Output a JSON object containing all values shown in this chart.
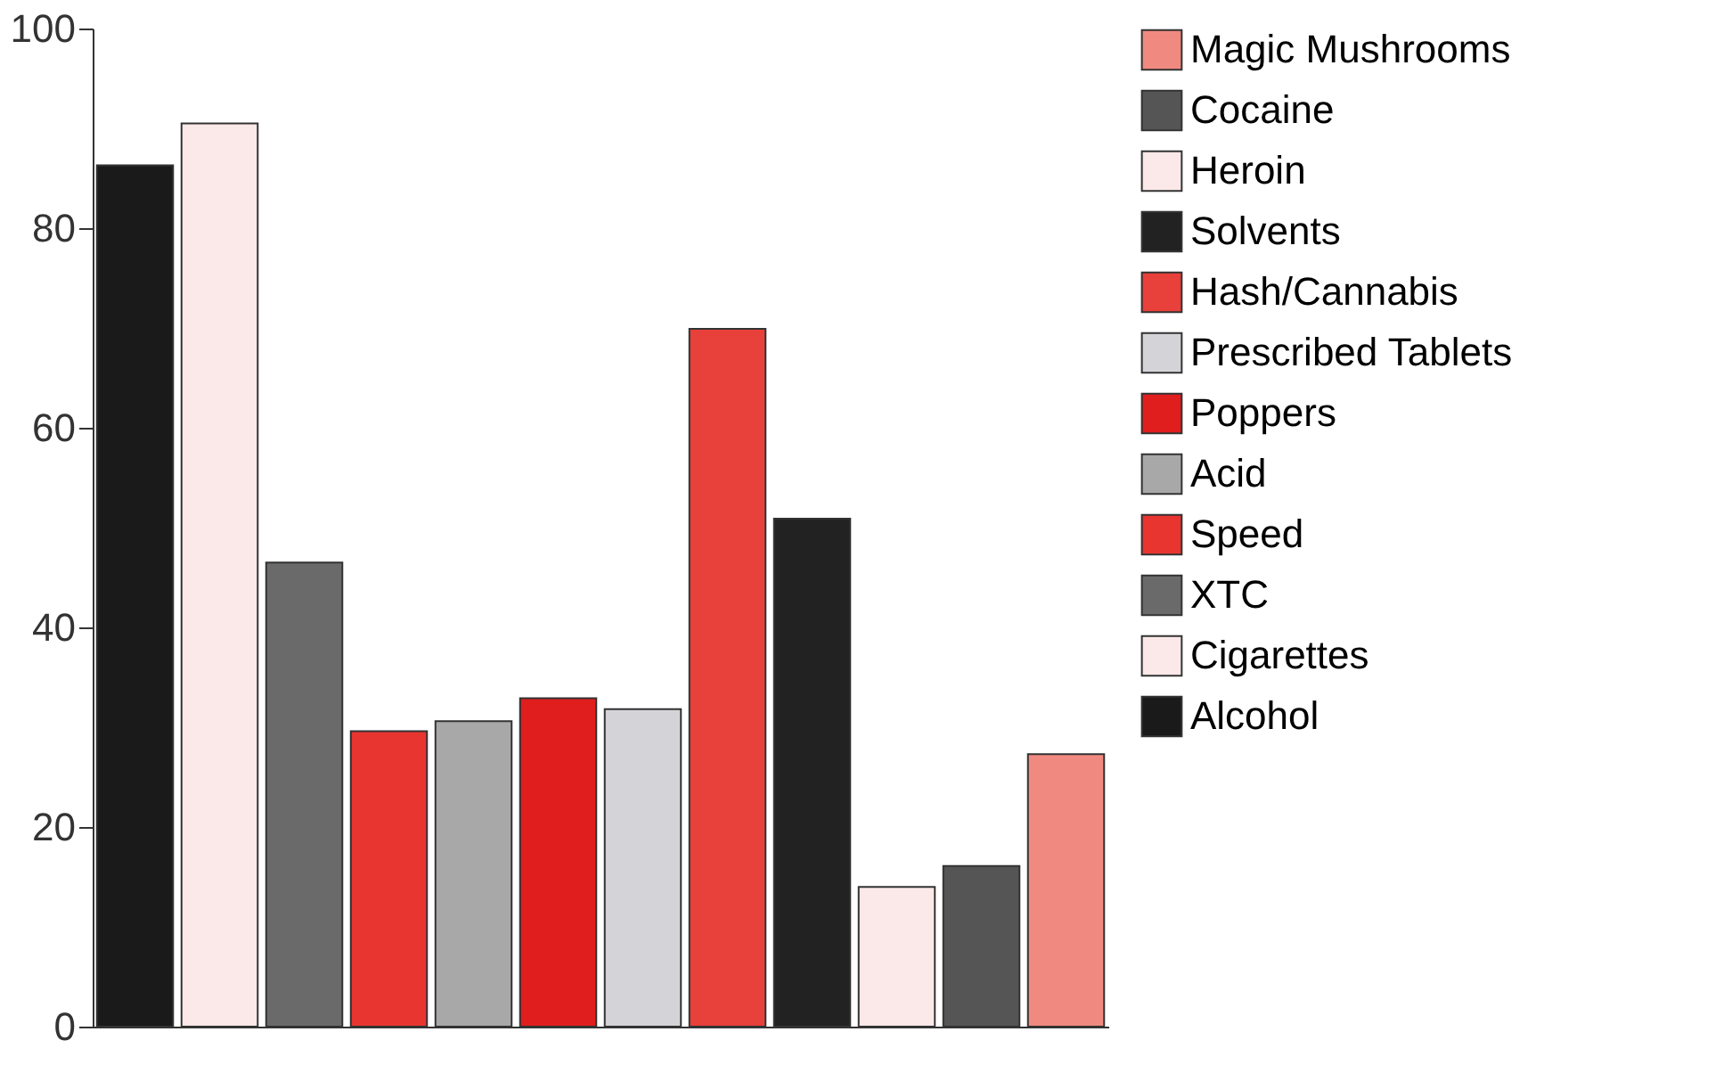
{
  "chart_data": {
    "type": "bar",
    "categories": [
      null,
      null,
      null,
      null,
      null,
      null,
      null,
      null,
      null,
      null,
      null,
      null
    ],
    "series": [
      {
        "name": "Magic Mushrooms",
        "color": "#f08a80",
        "values": [
          null,
          null,
          null,
          null,
          null,
          null,
          null,
          null,
          null,
          null,
          null,
          27.3
        ]
      },
      {
        "name": "Cocaine",
        "color": "#555555",
        "values": [
          null,
          null,
          null,
          null,
          null,
          null,
          null,
          null,
          null,
          null,
          16.1,
          null
        ]
      },
      {
        "name": "Heroin",
        "color": "#fbe8e8",
        "values": [
          null,
          null,
          null,
          null,
          null,
          null,
          null,
          null,
          null,
          14,
          null,
          null
        ]
      },
      {
        "name": "Solvents",
        "color": "#222222",
        "values": [
          null,
          null,
          null,
          null,
          null,
          null,
          null,
          null,
          50.9,
          null,
          null,
          null
        ]
      },
      {
        "name": "Hash/Cannabis",
        "color": "#e8403a",
        "values": [
          null,
          null,
          null,
          null,
          null,
          null,
          null,
          69.9,
          null,
          null,
          null,
          null
        ]
      },
      {
        "name": "Prescribed Tablets",
        "color": "#d4d4d8",
        "values": [
          null,
          null,
          null,
          null,
          null,
          null,
          31.8,
          null,
          null,
          null,
          null,
          null
        ]
      },
      {
        "name": "Poppers",
        "color": "#e01e1e",
        "values": [
          null,
          null,
          null,
          null,
          null,
          32.9,
          null,
          null,
          null,
          null,
          null,
          null
        ]
      },
      {
        "name": "Acid",
        "color": "#a8a8a8",
        "values": [
          null,
          null,
          null,
          null,
          30.6,
          null,
          null,
          null,
          null,
          null,
          null,
          null
        ]
      },
      {
        "name": "Speed",
        "color": "#e83530",
        "values": [
          null,
          null,
          null,
          29.6,
          null,
          null,
          null,
          null,
          null,
          null,
          null,
          null
        ]
      },
      {
        "name": "XTC",
        "color": "#6a6a6a",
        "values": [
          null,
          null,
          46.5,
          null,
          null,
          null,
          null,
          null,
          null,
          null,
          null,
          null
        ]
      },
      {
        "name": "Cigarettes",
        "color": "#fbe8e8",
        "values": [
          null,
          90.5,
          null,
          null,
          null,
          null,
          null,
          null,
          null,
          null,
          null,
          null
        ]
      },
      {
        "name": "Alcohol",
        "color": "#1a1a1a",
        "values": [
          86.3,
          null,
          null,
          null,
          null,
          null,
          null,
          null,
          null,
          null,
          null,
          null
        ]
      }
    ],
    "ylim": [
      0,
      100
    ],
    "yticks": [
      0,
      20,
      40,
      60,
      80,
      100
    ],
    "grid": false,
    "legend": "right",
    "tick_labels": "y"
  }
}
